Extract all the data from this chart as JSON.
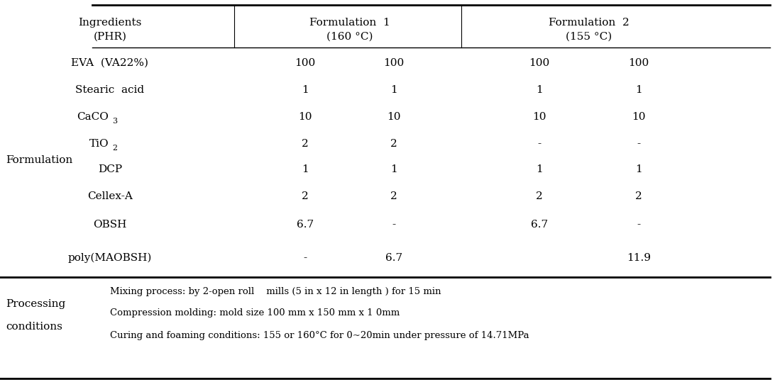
{
  "ingredients": [
    "EVA  (VA22%)",
    "Stearic  acid",
    "CaCO3",
    "TiO2",
    "DCP",
    "Cellex-A",
    "OBSH",
    "poly(MAOBSH)"
  ],
  "data": [
    [
      "100",
      "100",
      "100",
      "100"
    ],
    [
      "1",
      "1",
      "1",
      "1"
    ],
    [
      "10",
      "10",
      "10",
      "10"
    ],
    [
      "2",
      "2",
      "-",
      "-"
    ],
    [
      "1",
      "1",
      "1",
      "1"
    ],
    [
      "2",
      "2",
      "2",
      "2"
    ],
    [
      "6.7",
      "-",
      "6.7",
      "-"
    ],
    [
      "-",
      "6.7",
      "",
      "11.9"
    ]
  ],
  "processing_conditions": [
    "Mixing process: by 2-open roll    mills (5 in x 12 in length ) for 15 min",
    "Compression molding: mold size 100 mm x 150 mm x 1 0mm",
    "Curing and foaming conditions: 155 or 160°C for 0~20min under pressure of 14.71MPa"
  ],
  "left_label_formulation": "Formulation",
  "left_label_processing1": "Processing",
  "left_label_processing2": "conditions",
  "bg_color": "#ffffff",
  "text_color": "#000000",
  "font_size": 11,
  "small_font_size": 9.5
}
